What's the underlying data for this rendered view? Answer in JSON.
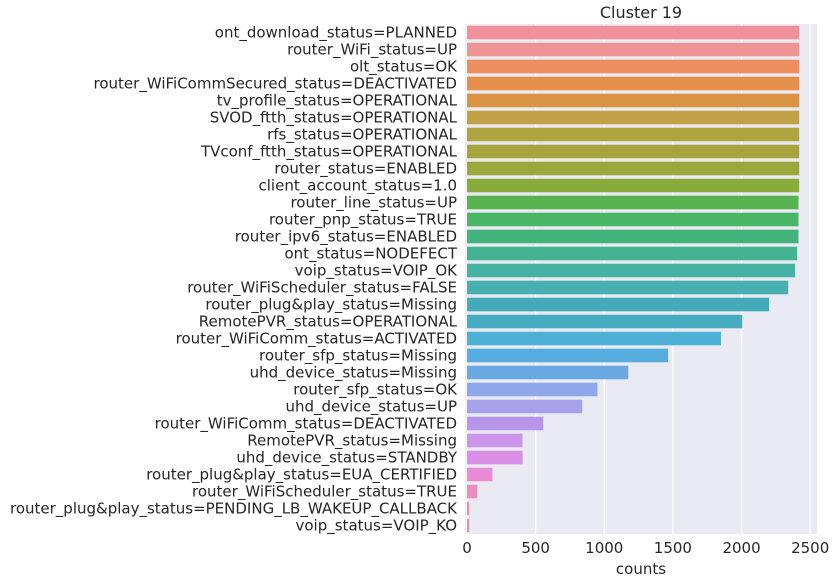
{
  "chart_data": {
    "type": "bar",
    "orientation": "horizontal",
    "title": "Cluster 19",
    "xlabel": "counts",
    "ylabel": "",
    "xlim": [
      0,
      2520
    ],
    "xticks": [
      0,
      500,
      1000,
      1500,
      2000,
      2500
    ],
    "grid": true,
    "categories": [
      "ont_download_status=PLANNED",
      "router_WiFi_status=UP",
      "olt_status=OK",
      "router_WiFiCommSecured_status=DEACTIVATED",
      "tv_profile_status=OPERATIONAL",
      "SVOD_ftth_status=OPERATIONAL",
      "rfs_status=OPERATIONAL",
      "TVconf_ftth_status=OPERATIONAL",
      "router_status=ENABLED",
      "client_account_status=1.0",
      "router_line_status=UP",
      "router_pnp_status=TRUE",
      "router_ipv6_status=ENABLED",
      "ont_status=NODEFECT",
      "voip_status=VOIP_OK",
      "router_WiFiScheduler_status=FALSE",
      "router_plug&play_status=Missing",
      "RemotePVR_status=OPERATIONAL",
      "router_WiFiComm_status=ACTIVATED",
      "router_sfp_status=Missing",
      "uhd_device_status=Missing",
      "router_sfp_status=OK",
      "uhd_device_status=UP",
      "router_WiFiComm_status=DEACTIVATED",
      "RemotePVR_status=Missing",
      "uhd_device_status=STANDBY",
      "router_plug&play_status=EUA_CERTIFIED",
      "router_WiFiScheduler_status=TRUE",
      "router_plug&play_status=PENDING_LB_WAKEUP_CALLBACK",
      "voip_status=VOIP_KO"
    ],
    "values": [
      2420,
      2420,
      2420,
      2420,
      2420,
      2420,
      2420,
      2420,
      2420,
      2420,
      2415,
      2415,
      2415,
      2405,
      2390,
      2340,
      2200,
      2005,
      1850,
      1465,
      1175,
      950,
      840,
      555,
      405,
      405,
      185,
      75,
      15,
      15
    ],
    "colors": [
      "#f0909b",
      "#ee9494",
      "#eb8f5e",
      "#e4904a",
      "#d99443",
      "#c2a047",
      "#b0a440",
      "#a6a43c",
      "#99a73b",
      "#89ab3c",
      "#57b34f",
      "#48b665",
      "#43b37d",
      "#43b392",
      "#45b2a3",
      "#46afb0",
      "#43aab9",
      "#47acc1",
      "#4cb1d4",
      "#55acde",
      "#6aa8e2",
      "#8ea8eb",
      "#a6a1ea",
      "#b796e9",
      "#cb95ea",
      "#d88fe5",
      "#e98bd6",
      "#ea8ec0",
      "#e98baf",
      "#ec8ba1"
    ]
  }
}
